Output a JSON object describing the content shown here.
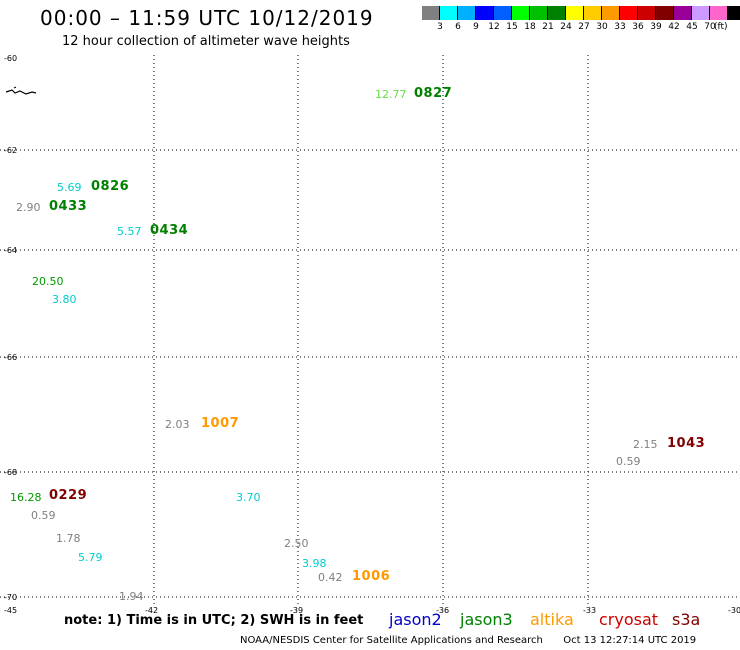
{
  "title": "00:00 – 11:59 UTC 10/12/2019",
  "subtitle": "12 hour collection of altimeter wave heights",
  "colorbar": {
    "colors": [
      "#808080",
      "#00ffff",
      "#00b0ff",
      "#0000ff",
      "#0060ff",
      "#00ff00",
      "#00c000",
      "#008000",
      "#ffff00",
      "#ffcc00",
      "#ff9900",
      "#ff0000",
      "#cc0000",
      "#800000",
      "#990099",
      "#cc99ff",
      "#ff66cc",
      "#000000"
    ],
    "labels": [
      "3",
      "6",
      "9",
      "12",
      "15",
      "18",
      "21",
      "24",
      "27",
      "30",
      "33",
      "36",
      "39",
      "42",
      "45",
      "70"
    ],
    "unit": "(ft)"
  },
  "axes": {
    "lat_labels": [
      "-60",
      "-62",
      "-64",
      "-66",
      "-68",
      "-70"
    ],
    "lon_labels": [
      "-45",
      "-42",
      "-39",
      "-36",
      "-33",
      "-30"
    ]
  },
  "observations": [
    {
      "text": "12.77",
      "color": "#66dd44"
    },
    {
      "text": "5.69",
      "color": "#00cccc"
    },
    {
      "text": "2.90",
      "color": "#808080"
    },
    {
      "text": "5.57",
      "color": "#00cccc"
    },
    {
      "text": "20.50",
      "color": "#009900"
    },
    {
      "text": "3.80",
      "color": "#00cccc"
    },
    {
      "text": "2.03",
      "color": "#808080"
    },
    {
      "text": "2.15",
      "color": "#808080"
    },
    {
      "text": "0.59",
      "color": "#808080"
    },
    {
      "text": "16.28",
      "color": "#009900"
    },
    {
      "text": "0.59",
      "color": "#808080"
    },
    {
      "text": "3.70",
      "color": "#00cccc"
    },
    {
      "text": "1.78",
      "color": "#808080"
    },
    {
      "text": "5.79",
      "color": "#00cccc"
    },
    {
      "text": "2.50",
      "color": "#808080"
    },
    {
      "text": "3.98",
      "color": "#00cccc"
    },
    {
      "text": "0.42",
      "color": "#808080"
    },
    {
      "text": "1.94",
      "color": "#808080"
    }
  ],
  "time_codes": [
    {
      "text": "0827",
      "color": "#008000"
    },
    {
      "text": "0826",
      "color": "#008000"
    },
    {
      "text": "0433",
      "color": "#008000"
    },
    {
      "text": "0434",
      "color": "#008000"
    },
    {
      "text": "1007",
      "color": "#ff9900"
    },
    {
      "text": "1043",
      "color": "#800000"
    },
    {
      "text": "0229",
      "color": "#800000"
    },
    {
      "text": "1006",
      "color": "#ff9900"
    }
  ],
  "footer": {
    "note": "note: 1) Time is in UTC; 2) SWH is in feet",
    "satellites": [
      {
        "name": "jason2",
        "color": "#0000cc"
      },
      {
        "name": "jason3",
        "color": "#008000"
      },
      {
        "name": "altika",
        "color": "#ff9900"
      },
      {
        "name": "cryosat",
        "color": "#cc0000"
      },
      {
        "name": "s3a",
        "color": "#800000"
      }
    ],
    "credit": "NOAA/NESDIS Center for Satellite Applications and Research",
    "timestamp": "Oct 13 12:27:14 UTC 2019"
  }
}
